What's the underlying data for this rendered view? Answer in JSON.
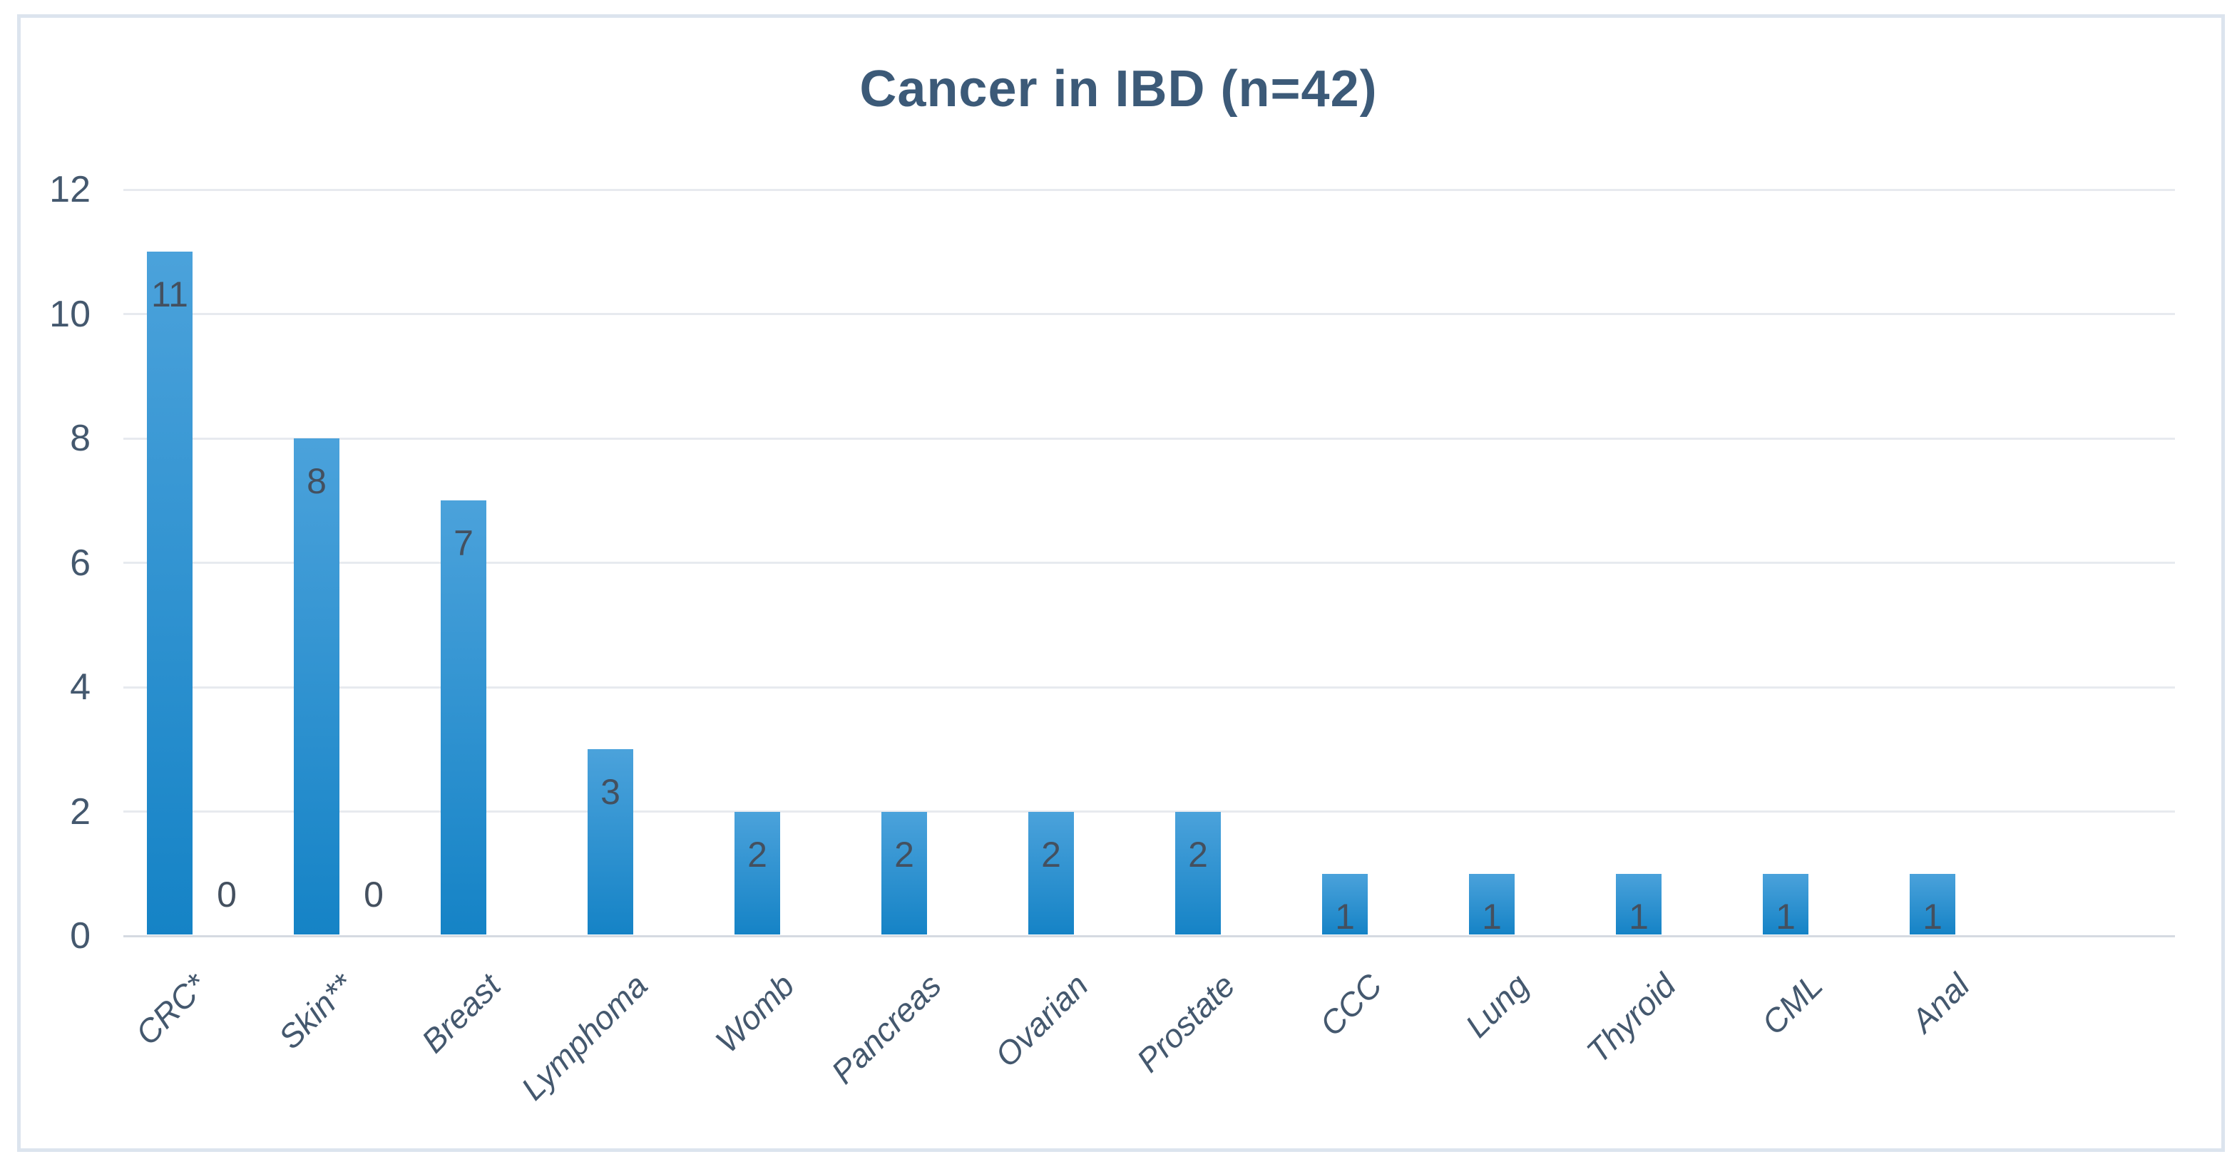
{
  "chart_data": {
    "type": "bar",
    "title": "Cancer in IBD (n=42)",
    "categories": [
      "CRC*",
      "Skin**",
      "Breast",
      "Lymphoma",
      "Womb",
      "Pancreas",
      "Ovarian",
      "Prostate",
      "CCC",
      "Lung",
      "Thyroid",
      "CML",
      "Anal"
    ],
    "values": [
      11,
      8,
      7,
      3,
      2,
      2,
      2,
      2,
      1,
      1,
      1,
      1,
      1
    ],
    "data_labels": [
      "11",
      "8",
      "7",
      "3",
      "2",
      "2",
      "2",
      "2",
      "1",
      "1",
      "1",
      "1",
      "1"
    ],
    "annotations": [
      {
        "category_index": 0,
        "label": "0",
        "value": 0
      },
      {
        "category_index": 1,
        "label": "0",
        "value": 0
      }
    ],
    "xlabel": "",
    "ylabel": "",
    "ylim": [
      0,
      12
    ],
    "yticks": [
      0,
      2,
      4,
      6,
      8,
      10,
      12
    ],
    "grid": true,
    "legend": "none",
    "colors": {
      "bar_top": "#4ba2db",
      "bar_bottom": "#1583c6",
      "title": "#3c5a78",
      "axis_text": "#44586e",
      "data_label": "#44505f",
      "gridline": "#e7eaef",
      "axis_line": "#d5dae1",
      "frame_border": "#dce4ee"
    }
  }
}
